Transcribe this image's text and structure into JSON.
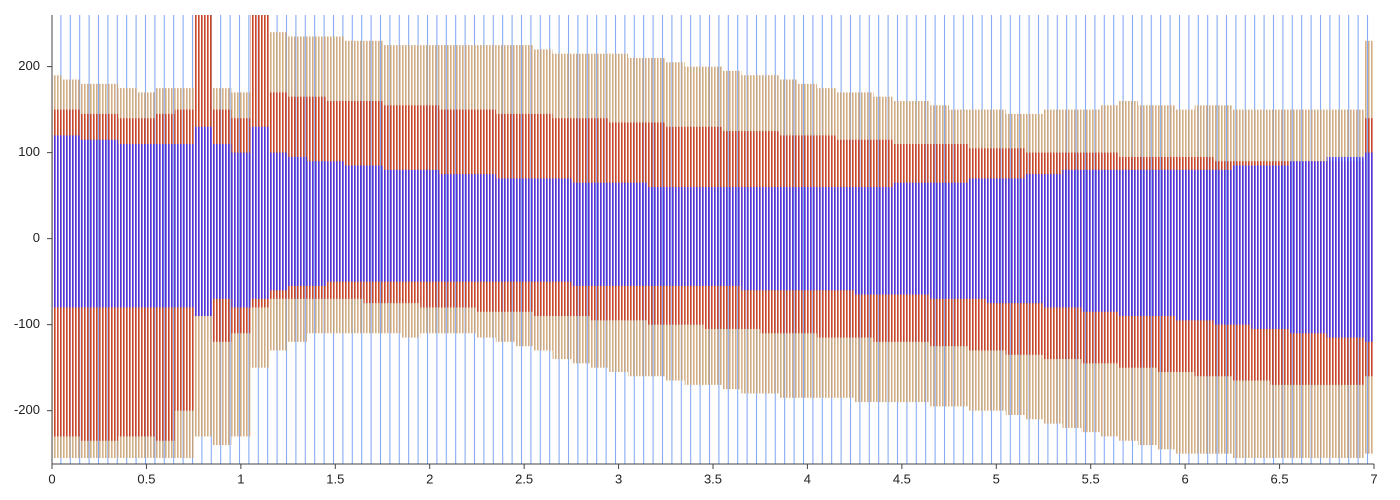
{
  "chart_data": {
    "type": "range",
    "x": [
      0,
      0.1,
      0.2,
      0.3,
      0.4,
      0.5,
      0.6,
      0.7,
      0.8,
      0.9,
      1,
      1.1,
      1.2,
      1.3,
      1.4,
      1.5,
      1.6,
      1.7,
      1.8,
      1.9,
      2,
      2.1,
      2.2,
      2.3,
      2.4,
      2.5,
      2.6,
      2.7,
      2.8,
      2.9,
      3,
      3.1,
      3.2,
      3.3,
      3.4,
      3.5,
      3.6,
      3.7,
      3.8,
      3.9,
      4,
      4.1,
      4.2,
      4.3,
      4.4,
      4.5,
      4.6,
      4.7,
      4.8,
      4.9,
      5,
      5.1,
      5.2,
      5.3,
      5.4,
      5.5,
      5.6,
      5.7,
      5.8,
      5.9,
      6,
      6.1,
      6.2,
      6.3,
      6.4,
      6.5,
      6.6,
      6.7,
      6.8,
      6.9,
      7
    ],
    "series": [
      {
        "color": "#c9a070",
        "high": [
          190,
          185,
          180,
          180,
          175,
          170,
          175,
          175,
          260,
          175,
          170,
          260,
          240,
          235,
          235,
          235,
          230,
          230,
          225,
          225,
          225,
          225,
          225,
          225,
          225,
          225,
          220,
          215,
          215,
          215,
          215,
          210,
          210,
          205,
          200,
          200,
          195,
          190,
          190,
          185,
          180,
          175,
          170,
          170,
          165,
          160,
          160,
          155,
          150,
          150,
          150,
          145,
          145,
          150,
          150,
          150,
          155,
          160,
          155,
          155,
          150,
          155,
          155,
          150,
          150,
          150,
          150,
          150,
          150,
          150,
          230
        ],
        "low": [
          -255,
          -255,
          -255,
          -255,
          -255,
          -255,
          -255,
          -255,
          -230,
          -240,
          -230,
          -150,
          -130,
          -120,
          -110,
          -110,
          -110,
          -110,
          -110,
          -115,
          -110,
          -110,
          -110,
          -115,
          -120,
          -125,
          -130,
          -140,
          -145,
          -150,
          -155,
          -160,
          -160,
          -165,
          -170,
          -170,
          -175,
          -180,
          -180,
          -185,
          -185,
          -185,
          -185,
          -190,
          -190,
          -190,
          -190,
          -195,
          -195,
          -200,
          -200,
          -205,
          -210,
          -215,
          -220,
          -225,
          -230,
          -235,
          -240,
          -245,
          -250,
          -250,
          -250,
          -255,
          -255,
          -255,
          -255,
          -255,
          -255,
          -255,
          -250
        ]
      },
      {
        "color": "#c8361c",
        "high": [
          150,
          150,
          145,
          145,
          140,
          140,
          145,
          150,
          260,
          150,
          140,
          260,
          170,
          165,
          165,
          160,
          160,
          160,
          155,
          155,
          155,
          150,
          150,
          150,
          145,
          145,
          145,
          140,
          140,
          140,
          135,
          135,
          135,
          130,
          130,
          130,
          125,
          125,
          125,
          120,
          120,
          120,
          115,
          115,
          115,
          110,
          110,
          110,
          110,
          105,
          105,
          105,
          100,
          100,
          100,
          100,
          100,
          95,
          95,
          95,
          95,
          95,
          90,
          90,
          90,
          90,
          90,
          90,
          90,
          90,
          140
        ],
        "low": [
          -230,
          -230,
          -235,
          -235,
          -230,
          -230,
          -235,
          -200,
          -90,
          -120,
          -110,
          -80,
          -70,
          -70,
          -70,
          -70,
          -70,
          -75,
          -75,
          -75,
          -80,
          -80,
          -80,
          -85,
          -85,
          -85,
          -90,
          -90,
          -90,
          -95,
          -95,
          -95,
          -100,
          -100,
          -100,
          -105,
          -105,
          -105,
          -110,
          -110,
          -110,
          -115,
          -115,
          -115,
          -120,
          -120,
          -120,
          -125,
          -125,
          -130,
          -130,
          -135,
          -135,
          -140,
          -140,
          -145,
          -145,
          -150,
          -150,
          -155,
          -155,
          -160,
          -160,
          -165,
          -165,
          -170,
          -170,
          -170,
          -170,
          -170,
          -160
        ]
      },
      {
        "color": "#3a30ff",
        "high": [
          120,
          120,
          115,
          115,
          110,
          110,
          110,
          110,
          130,
          110,
          100,
          130,
          100,
          95,
          90,
          90,
          85,
          85,
          80,
          80,
          80,
          75,
          75,
          75,
          70,
          70,
          70,
          70,
          65,
          65,
          65,
          65,
          60,
          60,
          60,
          60,
          60,
          60,
          60,
          60,
          60,
          60,
          60,
          60,
          60,
          65,
          65,
          65,
          65,
          70,
          70,
          70,
          75,
          75,
          80,
          80,
          80,
          80,
          80,
          80,
          80,
          80,
          80,
          85,
          85,
          85,
          90,
          90,
          95,
          95,
          100
        ],
        "low": [
          -80,
          -80,
          -80,
          -80,
          -80,
          -80,
          -80,
          -80,
          -90,
          -70,
          -80,
          -70,
          -60,
          -55,
          -55,
          -50,
          -50,
          -50,
          -50,
          -50,
          -50,
          -50,
          -50,
          -50,
          -50,
          -50,
          -50,
          -50,
          -55,
          -55,
          -55,
          -55,
          -55,
          -55,
          -55,
          -55,
          -55,
          -60,
          -60,
          -60,
          -60,
          -60,
          -60,
          -65,
          -65,
          -65,
          -65,
          -70,
          -70,
          -70,
          -75,
          -75,
          -75,
          -80,
          -80,
          -85,
          -85,
          -90,
          -90,
          -90,
          -95,
          -95,
          -100,
          -100,
          -105,
          -105,
          -110,
          -110,
          -115,
          -115,
          -120
        ]
      }
    ],
    "xlim": [
      0,
      7
    ],
    "ylim": [
      -262,
      260
    ],
    "xticks": [
      0,
      0.5,
      1,
      1.5,
      2,
      2.5,
      3,
      3.5,
      4,
      4.5,
      5,
      5.5,
      6,
      6.5,
      7
    ],
    "yticks": [
      -200,
      -100,
      0,
      100,
      200
    ]
  }
}
